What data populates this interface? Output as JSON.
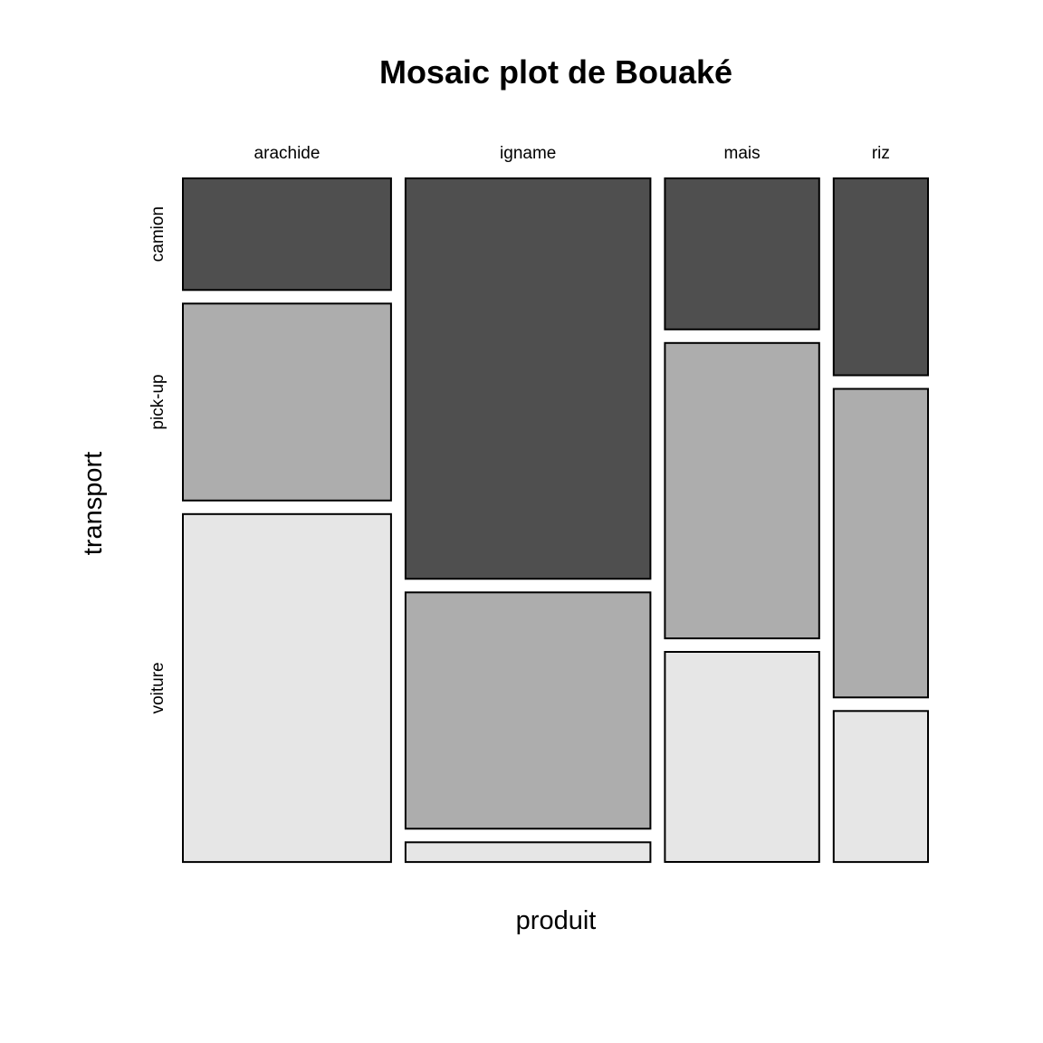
{
  "chart_data": {
    "type": "mosaic",
    "title": "Mosaic plot de Bouaké",
    "xlabel": "produit",
    "ylabel": "transport",
    "categories": [
      "arachide",
      "igname",
      "mais",
      "riz"
    ],
    "column_shares": [
      0.278,
      0.327,
      0.206,
      0.126
    ],
    "rows": [
      "camion",
      "pick-up",
      "voiture"
    ],
    "conditional_shares": [
      [
        0.17,
        0.3,
        0.53
      ],
      [
        0.61,
        0.36,
        0.03
      ],
      [
        0.23,
        0.45,
        0.32
      ],
      [
        0.3,
        0.47,
        0.23
      ]
    ],
    "row_label_positions": [
      0.17,
      0.3,
      0.53
    ],
    "colors": {
      "camion": "#4f4f4f",
      "pick-up": "#adadad",
      "voiture": "#e6e6e6"
    },
    "grid": false,
    "legend": "none"
  }
}
